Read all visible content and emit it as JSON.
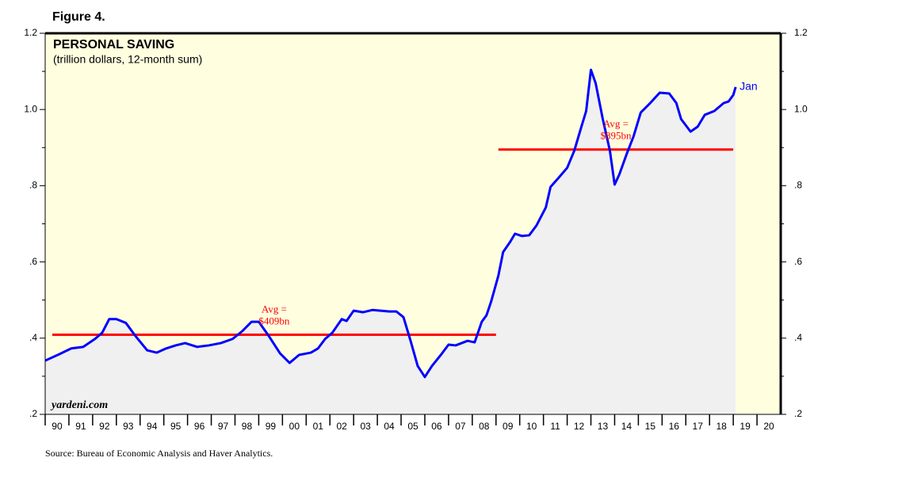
{
  "figure_label": "Figure 4.",
  "chart_data": {
    "type": "line",
    "title": "PERSONAL SAVING",
    "subtitle": "(trillion dollars, 12-month sum)",
    "watermark": "yardeni.com",
    "source": "Source: Bureau of Economic Analysis and Haver Analytics.",
    "end_label": "Jan",
    "color": "#0000ff",
    "area_color": "#f0f0f0",
    "x": [
      1990.0,
      1990.6,
      1991.1,
      1991.6,
      1992.1,
      1992.4,
      1992.7,
      1993.0,
      1993.4,
      1993.8,
      1994.3,
      1994.7,
      1995.1,
      1995.5,
      1995.9,
      1996.4,
      1996.9,
      1997.4,
      1997.9,
      1998.3,
      1998.7,
      1999.0,
      1999.4,
      1999.9,
      2000.3,
      2000.7,
      2001.2,
      2001.5,
      2001.8,
      2002.1,
      2002.5,
      2002.7,
      2003.0,
      2003.4,
      2003.8,
      2004.5,
      2004.8,
      2005.1,
      2005.4,
      2005.7,
      2006.0,
      2006.3,
      2006.7,
      2007.0,
      2007.3,
      2007.8,
      2008.1,
      2008.4,
      2008.6,
      2008.8,
      2009.1,
      2009.3,
      2009.6,
      2009.8,
      2010.1,
      2010.4,
      2010.7,
      2011.1,
      2011.3,
      2011.6,
      2012.0,
      2012.3,
      2012.6,
      2012.8,
      2013.0,
      2013.2,
      2013.5,
      2013.8,
      2014.0,
      2014.2,
      2014.5,
      2014.8,
      2015.1,
      2015.5,
      2015.9,
      2016.3,
      2016.6,
      2016.8,
      2017.2,
      2017.5,
      2017.8,
      2018.2,
      2018.6,
      2018.8,
      2019.0,
      2019.1
    ],
    "values": [
      0.341,
      0.358,
      0.373,
      0.377,
      0.398,
      0.414,
      0.45,
      0.45,
      0.44,
      0.406,
      0.368,
      0.362,
      0.373,
      0.381,
      0.387,
      0.377,
      0.381,
      0.387,
      0.398,
      0.418,
      0.443,
      0.443,
      0.408,
      0.36,
      0.335,
      0.356,
      0.362,
      0.373,
      0.398,
      0.414,
      0.45,
      0.445,
      0.472,
      0.468,
      0.474,
      0.47,
      0.47,
      0.455,
      0.393,
      0.327,
      0.298,
      0.327,
      0.358,
      0.383,
      0.381,
      0.393,
      0.389,
      0.443,
      0.46,
      0.497,
      0.564,
      0.626,
      0.653,
      0.674,
      0.668,
      0.67,
      0.695,
      0.743,
      0.797,
      0.818,
      0.847,
      0.892,
      0.955,
      0.996,
      1.104,
      1.069,
      0.975,
      0.892,
      0.803,
      0.83,
      0.882,
      0.93,
      0.992,
      1.017,
      1.044,
      1.042,
      1.017,
      0.975,
      0.942,
      0.955,
      0.986,
      0.996,
      1.017,
      1.021,
      1.038,
      1.059
    ],
    "averages": [
      {
        "label": [
          "Avg =",
          "$409bn"
        ],
        "value": 0.409,
        "x": [
          1990.3,
          2009.0
        ],
        "color": "#ff0000"
      },
      {
        "label": [
          "Avg =",
          "$895bn"
        ],
        "value": 0.895,
        "x": [
          2009.1,
          2019.0
        ],
        "color": "#ff0000"
      }
    ],
    "xlim": [
      1990,
      2021
    ],
    "xticks": [
      {
        "value": 1990,
        "label": "90"
      },
      {
        "value": 1991,
        "label": "91"
      },
      {
        "value": 1992,
        "label": "92"
      },
      {
        "value": 1993,
        "label": "93"
      },
      {
        "value": 1994,
        "label": "94"
      },
      {
        "value": 1995,
        "label": "95"
      },
      {
        "value": 1996,
        "label": "96"
      },
      {
        "value": 1997,
        "label": "97"
      },
      {
        "value": 1998,
        "label": "98"
      },
      {
        "value": 1999,
        "label": "99"
      },
      {
        "value": 2000,
        "label": "00"
      },
      {
        "value": 2001,
        "label": "01"
      },
      {
        "value": 2002,
        "label": "02"
      },
      {
        "value": 2003,
        "label": "03"
      },
      {
        "value": 2004,
        "label": "04"
      },
      {
        "value": 2005,
        "label": "05"
      },
      {
        "value": 2006,
        "label": "06"
      },
      {
        "value": 2007,
        "label": "07"
      },
      {
        "value": 2008,
        "label": "08"
      },
      {
        "value": 2009,
        "label": "09"
      },
      {
        "value": 2010,
        "label": "10"
      },
      {
        "value": 2011,
        "label": "11"
      },
      {
        "value": 2012,
        "label": "12"
      },
      {
        "value": 2013,
        "label": "13"
      },
      {
        "value": 2014,
        "label": "14"
      },
      {
        "value": 2015,
        "label": "15"
      },
      {
        "value": 2016,
        "label": "16"
      },
      {
        "value": 2017,
        "label": "17"
      },
      {
        "value": 2018,
        "label": "18"
      },
      {
        "value": 2019,
        "label": "19"
      },
      {
        "value": 2020,
        "label": "20"
      }
    ],
    "ylim": [
      0.2,
      1.2
    ],
    "yticks": [
      {
        "value": 0.2,
        "label": ".2"
      },
      {
        "value": 0.4,
        "label": ".4"
      },
      {
        "value": 0.6,
        "label": ".6"
      },
      {
        "value": 0.8,
        "label": ".8"
      },
      {
        "value": 1.0,
        "label": "1.0"
      },
      {
        "value": 1.2,
        "label": "1.2"
      }
    ],
    "yticks_minor": [
      0.3,
      0.5,
      0.7,
      0.9,
      1.1
    ]
  }
}
